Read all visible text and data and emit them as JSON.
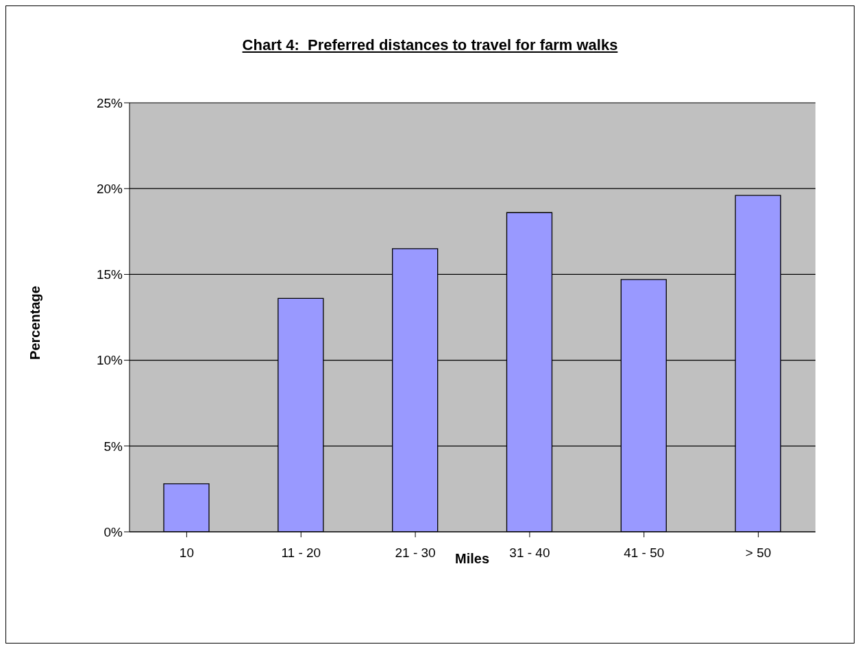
{
  "chart_data": {
    "type": "bar",
    "title": "Chart 4:  Preferred distances to travel for farm walks",
    "xlabel": "Miles",
    "ylabel": "Percentage",
    "categories": [
      "10",
      "11 - 20",
      "21 - 30",
      "31 - 40",
      "41 - 50",
      "> 50"
    ],
    "values": [
      2.8,
      13.6,
      16.5,
      18.6,
      14.7,
      19.6
    ],
    "color": "#9999ff",
    "ylim": [
      0,
      25
    ],
    "yticks": [
      {
        "value": 0,
        "label": "0%"
      },
      {
        "value": 5,
        "label": "5%"
      },
      {
        "value": 10,
        "label": "10%"
      },
      {
        "value": 15,
        "label": "15%"
      },
      {
        "value": 20,
        "label": "20%"
      },
      {
        "value": 25,
        "label": "25%"
      }
    ],
    "grid": "y"
  }
}
